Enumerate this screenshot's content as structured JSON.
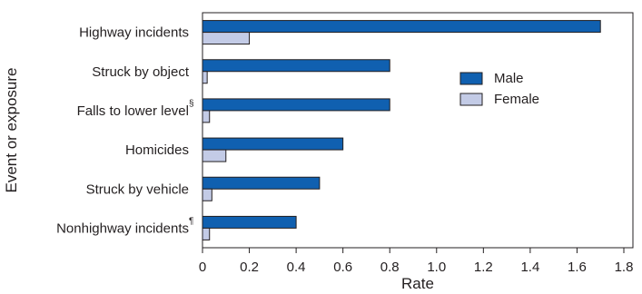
{
  "chart_data": {
    "type": "bar",
    "orientation": "horizontal",
    "title": "",
    "xlabel": "Rate",
    "ylabel": "Event or exposure",
    "xlim": [
      0,
      1.8
    ],
    "xticks": [
      "0",
      "0.2",
      "0.4",
      "0.6",
      "0.8",
      "1.0",
      "1.2",
      "1.4",
      "1.6",
      "1.8"
    ],
    "grid": false,
    "legend_position": "right, upper-middle inside plot",
    "categories": [
      {
        "label": "Highway incidents",
        "footnote": ""
      },
      {
        "label": "Struck by object",
        "footnote": ""
      },
      {
        "label": "Falls to lower level",
        "footnote": "§"
      },
      {
        "label": "Homicides",
        "footnote": ""
      },
      {
        "label": "Struck by vehicle",
        "footnote": ""
      },
      {
        "label": "Nonhighway incidents",
        "footnote": "¶"
      }
    ],
    "series": [
      {
        "name": "Male",
        "color": "#1060b0",
        "values": [
          1.7,
          0.8,
          0.8,
          0.6,
          0.5,
          0.4
        ]
      },
      {
        "name": "Female",
        "color": "#c3cbe6",
        "values": [
          0.2,
          0.02,
          0.03,
          0.1,
          0.04,
          0.03
        ]
      }
    ]
  }
}
